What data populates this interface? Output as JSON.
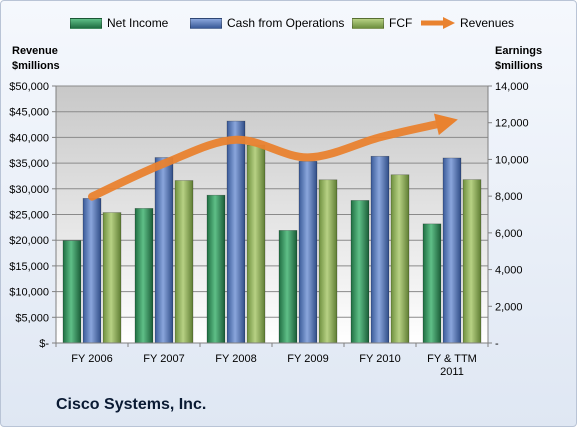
{
  "chart_data": {
    "type": "bar",
    "categories": [
      "FY 2006",
      "FY 2007",
      "FY 2008",
      "FY 2009",
      "FY 2010",
      "FY & TTM 2011"
    ],
    "category_lines": [
      [
        "FY 2006"
      ],
      [
        "FY 2007"
      ],
      [
        "FY 2008"
      ],
      [
        "FY 2009"
      ],
      [
        "FY 2010"
      ],
      [
        "FY & TTM",
        "2011"
      ]
    ],
    "series": [
      {
        "name": "Net Income",
        "type": "bar",
        "axis": "right",
        "color": "#2e8b57",
        "values": [
          5580,
          7333,
          8052,
          6134,
          7767,
          6490
        ]
      },
      {
        "name": "Cash from Operations",
        "type": "bar",
        "axis": "right",
        "color": "#4f6fae",
        "values": [
          7878,
          10104,
          12089,
          9897,
          10173,
          10079
        ]
      },
      {
        "name": "FCF",
        "type": "bar",
        "axis": "right",
        "color": "#8aab5a",
        "values": [
          7106,
          8852,
          10784,
          8891,
          9165,
          8899
        ]
      },
      {
        "name": "Revenues",
        "type": "line",
        "axis": "left",
        "color": "#e9822f",
        "values": [
          28484,
          34922,
          39540,
          36117,
          40040,
          43218
        ]
      }
    ],
    "y_left": {
      "label_lines": [
        "Revenue",
        "$millions"
      ],
      "ylim": [
        0,
        50000
      ],
      "ticks": [
        "$-",
        "$5,000",
        "$10,000",
        "$15,000",
        "$20,000",
        "$25,000",
        "$30,000",
        "$35,000",
        "$40,000",
        "$45,000",
        "$50,000"
      ]
    },
    "y_right": {
      "label_lines": [
        "Earnings",
        "$millions"
      ],
      "ylim": [
        0,
        14000
      ],
      "ticks": [
        "-",
        "2,000",
        "4,000",
        "6,000",
        "8,000",
        "10,000",
        "12,000",
        "14,000"
      ]
    },
    "grid": true,
    "legend_position": "top"
  },
  "company": "Cisco Systems, Inc."
}
